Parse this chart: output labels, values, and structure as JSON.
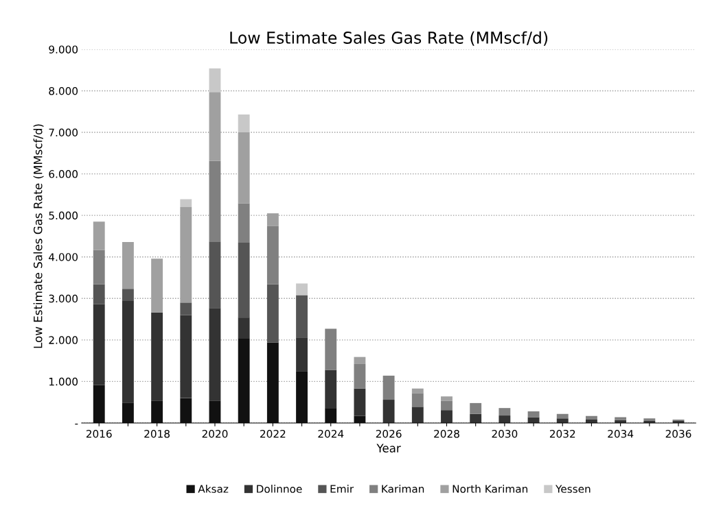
{
  "chart_data": {
    "type": "bar",
    "stacked": true,
    "title": "Low Estimate Sales Gas Rate (MMscf/d)",
    "xlabel": "Year",
    "ylabel": "Low Estimate Sales Gas Rate (MMscf/d)",
    "categories": [
      "2016",
      null,
      "2018",
      null,
      "2020",
      null,
      "2022",
      null,
      "2024",
      null,
      "2026",
      null,
      "2028",
      null,
      "2030",
      null,
      "2032",
      null,
      "2034",
      null,
      "2036"
    ],
    "series": [
      {
        "name": "Aksaz",
        "color": "#111111",
        "values": [
          0.91,
          0.49,
          0.54,
          0.6,
          0.54,
          2.03,
          1.94,
          1.25,
          0.36,
          0.17,
          0,
          0,
          0,
          0,
          0,
          0,
          0,
          0,
          0,
          0,
          0
        ]
      },
      {
        "name": "Dolinnoe",
        "color": "#333333",
        "values": [
          1.95,
          2.45,
          2.12,
          2.0,
          2.23,
          0.51,
          0,
          0.81,
          0.92,
          0.66,
          0.56,
          0.39,
          0.31,
          0.22,
          0.18,
          0.14,
          0.11,
          0.08,
          0.07,
          0.05,
          0.05
        ]
      },
      {
        "name": "Emir",
        "color": "#555555",
        "values": [
          0.48,
          0.29,
          0,
          0.3,
          1.6,
          1.8,
          1.4,
          1.02,
          0,
          0,
          0,
          0,
          0,
          0,
          0,
          0,
          0,
          0,
          0,
          0,
          0
        ]
      },
      {
        "name": "Kariman",
        "color": "#808080",
        "values": [
          0.83,
          0,
          0,
          0,
          1.94,
          0.95,
          1.4,
          0,
          0.99,
          0.59,
          0.58,
          0.33,
          0.22,
          0.26,
          0.18,
          0.14,
          0.11,
          0.09,
          0.07,
          0.06,
          0.03
        ]
      },
      {
        "name": "North Kariman",
        "color": "#a0a0a0",
        "values": [
          0.68,
          1.13,
          1.3,
          2.3,
          1.66,
          1.71,
          0.31,
          0,
          0,
          0.17,
          0,
          0.11,
          0.11,
          0,
          0,
          0,
          0,
          0,
          0,
          0,
          0
        ]
      },
      {
        "name": "Yessen",
        "color": "#c8c8c8",
        "values": [
          0,
          0,
          0,
          0.19,
          0.57,
          0.43,
          0,
          0.28,
          0,
          0,
          0,
          0,
          0,
          0,
          0,
          0,
          0,
          0,
          0,
          0,
          0
        ]
      }
    ],
    "ylim": [
      0,
      9
    ],
    "yticks": [
      {
        "value": 0,
        "label": "-"
      },
      {
        "value": 1,
        "label": "1.000"
      },
      {
        "value": 2,
        "label": "2.000"
      },
      {
        "value": 3,
        "label": "3.000"
      },
      {
        "value": 4,
        "label": "4.000"
      },
      {
        "value": 5,
        "label": "5.000"
      },
      {
        "value": 6,
        "label": "6.000"
      },
      {
        "value": 7,
        "label": "7.000"
      },
      {
        "value": 8,
        "label": "8.000"
      },
      {
        "value": 9,
        "label": "9.000"
      }
    ],
    "grid": "y",
    "legend": "bottom"
  }
}
